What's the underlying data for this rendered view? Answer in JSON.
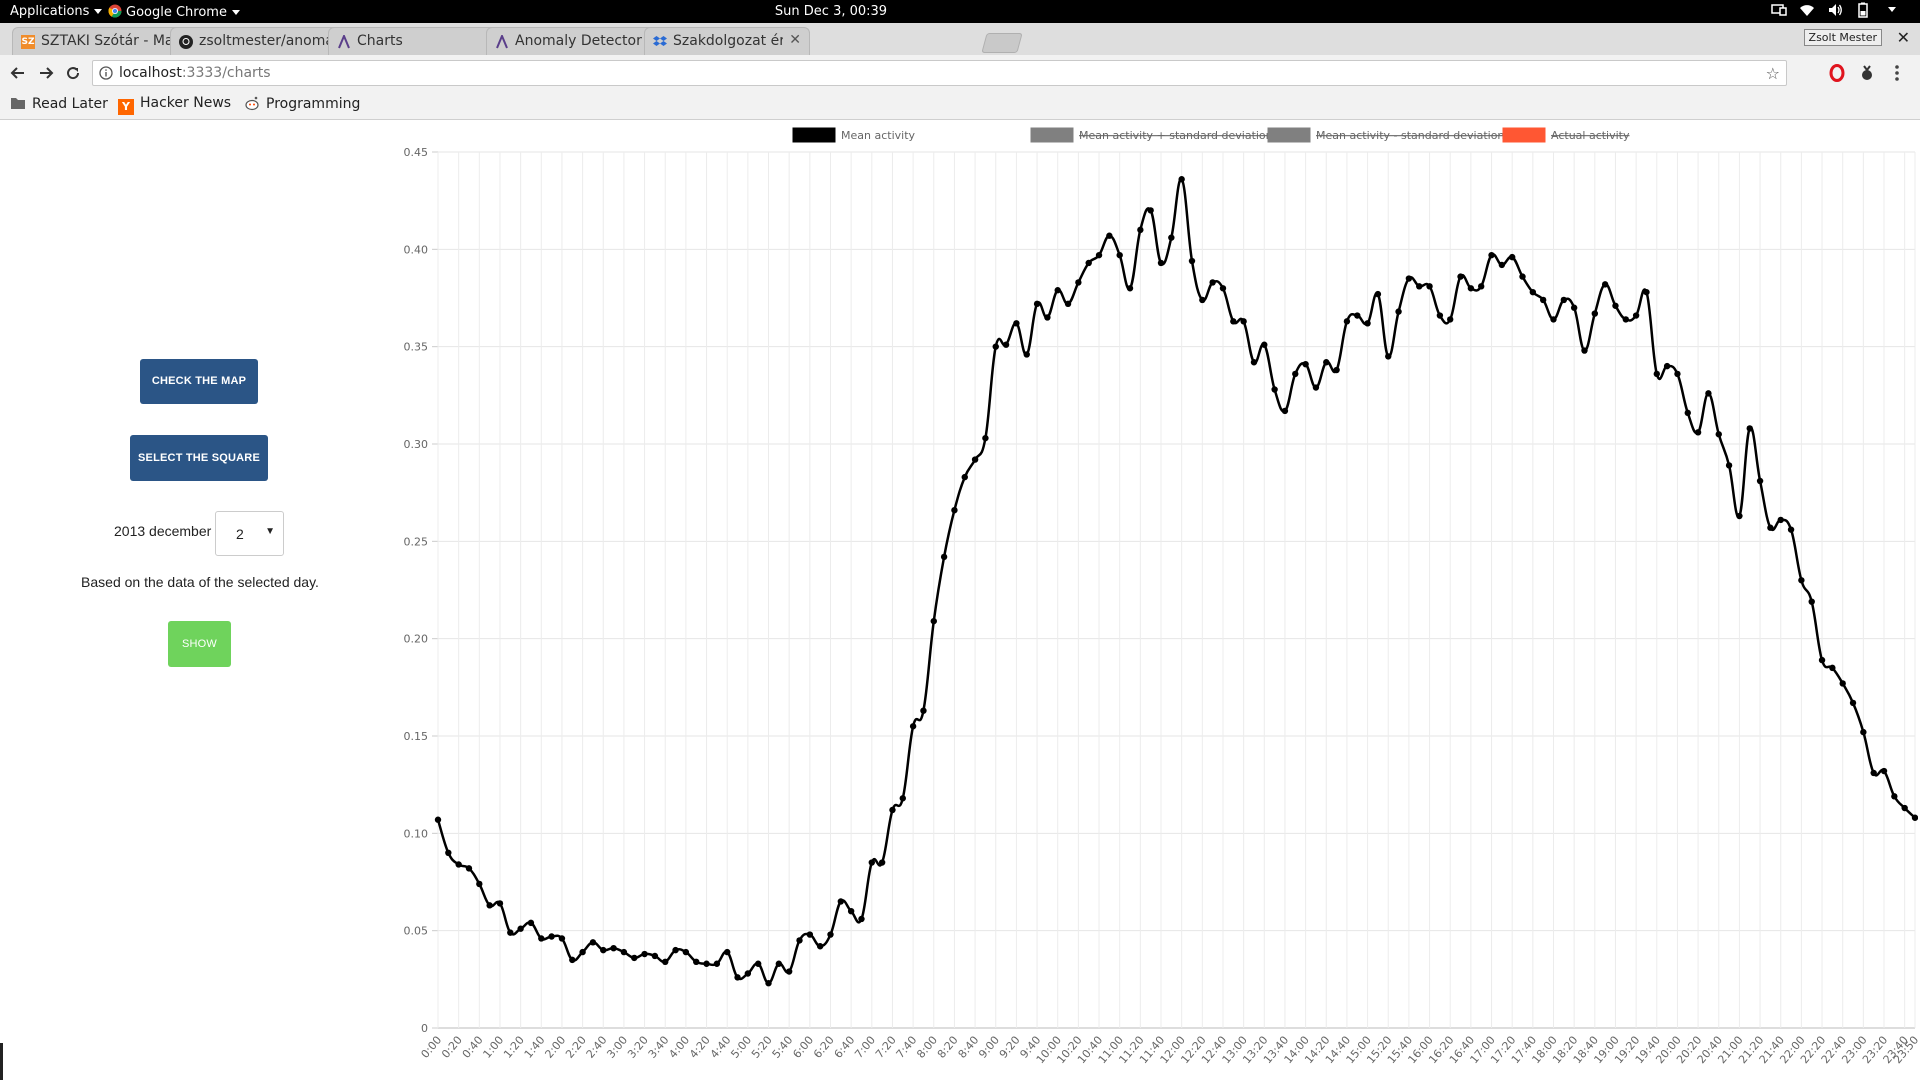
{
  "topbar": {
    "applications": "Applications",
    "browser": "Google Chrome",
    "clock": "Sun Dec  3, 00:39"
  },
  "tabs": [
    {
      "title": "SZTAKI Szótár - Ma",
      "icon": "sztaki-icon",
      "active": false
    },
    {
      "title": "zsoltmester/anomal",
      "icon": "github-icon",
      "active": false
    },
    {
      "title": "Charts",
      "icon": "anomaly-logo-icon",
      "active": true
    },
    {
      "title": "Anomaly Detector",
      "icon": "anomaly-logo-icon",
      "active": false
    },
    {
      "title": "Szakdolgozat érték",
      "icon": "dropbox-icon",
      "active": false
    }
  ],
  "profile_name": "Zsolt Mester",
  "address": {
    "host": "localhost",
    "path": ":3333/charts"
  },
  "bookmarks": [
    {
      "label": "Read Later",
      "icon": "folder-icon"
    },
    {
      "label": "Hacker News",
      "icon": "hacker-news-icon"
    },
    {
      "label": "Programming",
      "icon": "reddit-icon"
    }
  ],
  "sidebar": {
    "check_map": "CHECK THE MAP",
    "select_square": "SELECT THE SQUARE",
    "date_label": "2013 december",
    "day_value": "2",
    "note": "Based on the data of the selected day.",
    "show": "SHOW"
  },
  "colors": {
    "primary_button": "#2b5586",
    "show_button": "#6fd35c",
    "mean_line": "#000000",
    "std_line": "#808080",
    "actual_line": "#ff5733"
  },
  "chart_data": {
    "type": "line",
    "legend_position": "top",
    "legend": [
      {
        "label": "Mean activity",
        "color": "#000000",
        "hidden": false
      },
      {
        "label": "Mean activity + standard deviation",
        "color": "#808080",
        "hidden": true
      },
      {
        "label": "Mean activity - standard deviation",
        "color": "#808080",
        "hidden": true
      },
      {
        "label": "Actual activity",
        "color": "#ff5733",
        "hidden": true
      }
    ],
    "ylim": [
      0,
      0.45
    ],
    "yticks": [
      "0",
      "0.05",
      "0.10",
      "0.15",
      "0.20",
      "0.25",
      "0.30",
      "0.35",
      "0.40",
      "0.45"
    ],
    "x_interval_minutes": 10,
    "x_label_every_minutes": 20,
    "grid": true,
    "series": [
      {
        "name": "Mean activity",
        "values": [
          0.107,
          0.09,
          0.084,
          0.082,
          0.074,
          0.063,
          0.064,
          0.049,
          0.051,
          0.054,
          0.046,
          0.047,
          0.046,
          0.035,
          0.039,
          0.044,
          0.04,
          0.041,
          0.039,
          0.036,
          0.038,
          0.037,
          0.034,
          0.04,
          0.039,
          0.034,
          0.033,
          0.033,
          0.039,
          0.026,
          0.028,
          0.033,
          0.023,
          0.033,
          0.029,
          0.045,
          0.048,
          0.042,
          0.048,
          0.065,
          0.06,
          0.056,
          0.085,
          0.085,
          0.112,
          0.118,
          0.155,
          0.163,
          0.209,
          0.242,
          0.266,
          0.283,
          0.292,
          0.303,
          0.35,
          0.351,
          0.362,
          0.346,
          0.372,
          0.365,
          0.379,
          0.372,
          0.383,
          0.393,
          0.397,
          0.407,
          0.397,
          0.38,
          0.41,
          0.42,
          0.393,
          0.406,
          0.436,
          0.394,
          0.374,
          0.383,
          0.38,
          0.363,
          0.363,
          0.342,
          0.351,
          0.328,
          0.317,
          0.336,
          0.341,
          0.329,
          0.342,
          0.338,
          0.363,
          0.366,
          0.362,
          0.377,
          0.345,
          0.368,
          0.385,
          0.381,
          0.381,
          0.366,
          0.364,
          0.386,
          0.38,
          0.381,
          0.397,
          0.392,
          0.396,
          0.386,
          0.378,
          0.374,
          0.364,
          0.374,
          0.37,
          0.348,
          0.367,
          0.382,
          0.371,
          0.364,
          0.366,
          0.378,
          0.336,
          0.34,
          0.336,
          0.316,
          0.306,
          0.326,
          0.305,
          0.289,
          0.263,
          0.308,
          0.281,
          0.257,
          0.261,
          0.256,
          0.23,
          0.219,
          0.189,
          0.185,
          0.177,
          0.167,
          0.152,
          0.131,
          0.132,
          0.119,
          0.113,
          0.108
        ]
      }
    ]
  }
}
